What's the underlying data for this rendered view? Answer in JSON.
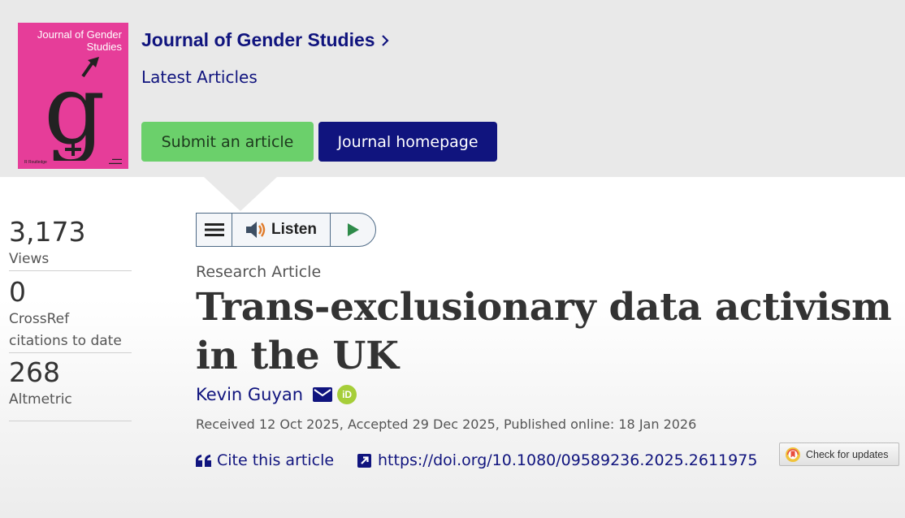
{
  "journal": {
    "cover_title": "Journal of Gender Studies",
    "name": "Journal of Gender Studies",
    "section": "Latest Articles",
    "submit_label": "Submit an article",
    "homepage_label": "Journal homepage",
    "brand_color": "#10147e",
    "cover_color": "#e63d99",
    "submit_color": "#6bd06b"
  },
  "metrics": [
    {
      "value": "3,173",
      "label": "Views"
    },
    {
      "value": "0",
      "label": "CrossRef citations to date"
    },
    {
      "value": "268",
      "label": "Altmetric"
    }
  ],
  "listen": {
    "label": "Listen",
    "icons": [
      "menu-icon",
      "speaker-icon",
      "play-icon"
    ]
  },
  "article": {
    "type": "Research Article",
    "title": "Trans-exclusionary data activism in the UK",
    "author": "Kevin Guyan",
    "dates": "Received 12 Oct 2025, Accepted 29 Dec 2025, Published online: 18 Jan 2026",
    "cite_label": "Cite this article",
    "doi": "https://doi.org/10.1080/09589236.2025.2611975",
    "check_updates_label": "Check for updates"
  }
}
